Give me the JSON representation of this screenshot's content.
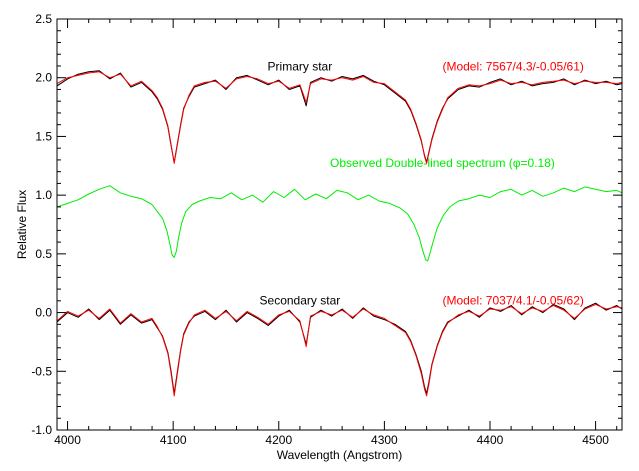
{
  "chart_data": {
    "type": "line",
    "title": "",
    "xlabel": "Wavelength (Angstrom)",
    "ylabel": "Relative Flux",
    "xlim": [
      3990,
      4525
    ],
    "ylim": [
      -1.0,
      2.5
    ],
    "xticks": [
      {
        "value": 4000,
        "label": "4000"
      },
      {
        "value": 4100,
        "label": "4100"
      },
      {
        "value": 4200,
        "label": "4200"
      },
      {
        "value": 4300,
        "label": "4300"
      },
      {
        "value": 4400,
        "label": "4400"
      },
      {
        "value": 4500,
        "label": "4500"
      }
    ],
    "yticks": [
      {
        "value": -1.0,
        "label": "-1.0"
      },
      {
        "value": -0.5,
        "label": "-0.5"
      },
      {
        "value": 0.0,
        "label": "0.0"
      },
      {
        "value": 0.5,
        "label": "0.5"
      },
      {
        "value": 1.0,
        "label": "1.0"
      },
      {
        "value": 1.5,
        "label": "1.5"
      },
      {
        "value": 2.0,
        "label": "2.0"
      },
      {
        "value": 2.5,
        "label": "2.5"
      }
    ],
    "x_minor_step": 20,
    "y_minor_step": 0.1,
    "grid": false,
    "colors": {
      "observed": "#000000",
      "model": "#ff0000",
      "double_lined": "#00ee00",
      "axis": "#000000"
    },
    "annotations": {
      "primary_label": {
        "text": "Primary star",
        "color": "#000000",
        "x": 4220,
        "y": 2.06
      },
      "primary_model": {
        "text": "(Model: 7567/4.3/-0.05/61)",
        "color": "#ff0000",
        "x": 4355,
        "y": 2.06
      },
      "double_label": {
        "text": "Observed Double-lined spectrum (φ=0.18)",
        "color": "#00ee00",
        "x": 4355,
        "y": 1.24
      },
      "secondary_label": {
        "text": "Secondary star",
        "color": "#000000",
        "x": 4220,
        "y": 0.07
      },
      "secondary_model": {
        "text": "(Model: 7037/4.1/-0.05/62)",
        "color": "#ff0000",
        "x": 4355,
        "y": 0.07
      }
    },
    "series": [
      {
        "key": "primary_observed",
        "group": "primary",
        "role": "observed",
        "color": "#000000",
        "x": [
          3990,
          4000,
          4010,
          4020,
          4030,
          4040,
          4050,
          4060,
          4070,
          4080,
          4085,
          4090,
          4095,
          4098,
          4101,
          4104,
          4107,
          4110,
          4115,
          4120,
          4130,
          4140,
          4150,
          4160,
          4170,
          4180,
          4190,
          4200,
          4210,
          4220,
          4226,
          4230,
          4240,
          4250,
          4260,
          4270,
          4280,
          4290,
          4300,
          4310,
          4320,
          4325,
          4330,
          4335,
          4338,
          4340,
          4342,
          4345,
          4350,
          4355,
          4360,
          4370,
          4380,
          4390,
          4400,
          4410,
          4420,
          4430,
          4440,
          4450,
          4460,
          4470,
          4480,
          4490,
          4500,
          4510,
          4520,
          4525
        ],
        "y": [
          1.93,
          1.99,
          2.03,
          2.05,
          2.06,
          1.99,
          2.04,
          1.92,
          1.96,
          1.88,
          1.82,
          1.73,
          1.58,
          1.42,
          1.28,
          1.44,
          1.6,
          1.74,
          1.84,
          1.92,
          1.95,
          1.98,
          1.9,
          2.0,
          2.02,
          1.98,
          1.94,
          1.98,
          1.9,
          1.93,
          1.76,
          1.96,
          2.0,
          1.97,
          2.01,
          1.99,
          2.02,
          1.97,
          1.94,
          1.87,
          1.8,
          1.72,
          1.6,
          1.46,
          1.34,
          1.28,
          1.36,
          1.48,
          1.63,
          1.74,
          1.82,
          1.9,
          1.93,
          1.92,
          1.96,
          1.99,
          1.94,
          1.97,
          1.93,
          1.95,
          1.96,
          1.99,
          1.94,
          1.98,
          1.95,
          1.97,
          1.94,
          1.95
        ]
      },
      {
        "key": "primary_model",
        "group": "primary",
        "role": "model",
        "color": "#ff0000",
        "x": [
          3990,
          4000,
          4010,
          4020,
          4030,
          4040,
          4050,
          4060,
          4070,
          4080,
          4085,
          4090,
          4095,
          4098,
          4101,
          4104,
          4107,
          4110,
          4115,
          4120,
          4130,
          4140,
          4150,
          4160,
          4170,
          4180,
          4190,
          4200,
          4210,
          4220,
          4226,
          4230,
          4240,
          4250,
          4260,
          4270,
          4280,
          4290,
          4300,
          4310,
          4320,
          4325,
          4330,
          4335,
          4338,
          4340,
          4342,
          4345,
          4350,
          4355,
          4360,
          4370,
          4380,
          4390,
          4400,
          4410,
          4420,
          4430,
          4440,
          4450,
          4460,
          4470,
          4480,
          4490,
          4500,
          4510,
          4520,
          4525
        ],
        "y": [
          1.95,
          2.0,
          2.02,
          2.04,
          2.05,
          2.0,
          2.03,
          1.93,
          1.97,
          1.89,
          1.83,
          1.74,
          1.59,
          1.43,
          1.27,
          1.43,
          1.59,
          1.73,
          1.85,
          1.93,
          1.96,
          1.97,
          1.91,
          1.99,
          2.01,
          1.99,
          1.95,
          1.97,
          1.91,
          1.94,
          1.79,
          1.95,
          1.99,
          1.98,
          2.0,
          1.98,
          2.01,
          1.96,
          1.95,
          1.88,
          1.81,
          1.73,
          1.61,
          1.47,
          1.33,
          1.27,
          1.35,
          1.47,
          1.62,
          1.73,
          1.83,
          1.91,
          1.94,
          1.93,
          1.95,
          1.98,
          1.95,
          1.96,
          1.94,
          1.96,
          1.97,
          1.98,
          1.95,
          1.97,
          1.96,
          1.96,
          1.95,
          1.96
        ]
      },
      {
        "key": "double_lined",
        "group": "double",
        "role": "observed",
        "color": "#00ee00",
        "x": [
          3990,
          4000,
          4010,
          4020,
          4030,
          4040,
          4050,
          4060,
          4070,
          4080,
          4085,
          4090,
          4094,
          4097,
          4099,
          4101,
          4103,
          4105,
          4108,
          4112,
          4118,
          4125,
          4135,
          4145,
          4155,
          4165,
          4175,
          4185,
          4195,
          4205,
          4215,
          4225,
          4235,
          4245,
          4255,
          4265,
          4275,
          4285,
          4295,
          4305,
          4315,
          4322,
          4328,
          4333,
          4336,
          4339,
          4341,
          4343,
          4346,
          4350,
          4356,
          4362,
          4370,
          4380,
          4390,
          4400,
          4410,
          4420,
          4430,
          4440,
          4450,
          4460,
          4470,
          4480,
          4490,
          4500,
          4510,
          4520,
          4525
        ],
        "y": [
          0.9,
          0.93,
          0.96,
          1.01,
          1.05,
          1.08,
          1.02,
          0.99,
          0.97,
          0.92,
          0.86,
          0.8,
          0.7,
          0.58,
          0.49,
          0.47,
          0.52,
          0.63,
          0.76,
          0.86,
          0.92,
          0.95,
          0.98,
          0.97,
          1.02,
          0.96,
          1.0,
          0.94,
          1.03,
          0.98,
          1.05,
          0.96,
          1.01,
          0.97,
          1.04,
          1.02,
          0.96,
          1.0,
          0.95,
          0.93,
          0.89,
          0.84,
          0.75,
          0.64,
          0.54,
          0.45,
          0.44,
          0.5,
          0.6,
          0.72,
          0.83,
          0.9,
          0.95,
          0.97,
          1.0,
          0.98,
          1.03,
          1.05,
          1.0,
          1.04,
          0.99,
          1.02,
          1.06,
          1.03,
          1.07,
          1.05,
          1.03,
          1.04,
          1.02
        ]
      },
      {
        "key": "secondary_observed",
        "group": "secondary",
        "role": "observed",
        "color": "#000000",
        "x": [
          3990,
          4000,
          4010,
          4020,
          4030,
          4040,
          4050,
          4060,
          4070,
          4080,
          4085,
          4090,
          4095,
          4098,
          4101,
          4104,
          4107,
          4110,
          4115,
          4120,
          4130,
          4140,
          4150,
          4160,
          4170,
          4180,
          4190,
          4200,
          4210,
          4220,
          4226,
          4230,
          4240,
          4250,
          4260,
          4270,
          4280,
          4290,
          4300,
          4310,
          4320,
          4325,
          4330,
          4335,
          4338,
          4340,
          4342,
          4345,
          4350,
          4355,
          4360,
          4370,
          4380,
          4390,
          4400,
          4410,
          4420,
          4430,
          4440,
          4450,
          4460,
          4470,
          4480,
          4490,
          4500,
          4510,
          4520,
          4525
        ],
        "y": [
          -0.08,
          0.0,
          -0.04,
          0.03,
          -0.06,
          0.02,
          -0.1,
          -0.02,
          -0.09,
          -0.06,
          -0.13,
          -0.2,
          -0.34,
          -0.5,
          -0.69,
          -0.5,
          -0.32,
          -0.18,
          -0.08,
          -0.03,
          0.01,
          -0.06,
          0.02,
          -0.08,
          0.0,
          -0.05,
          -0.11,
          -0.03,
          0.02,
          -0.08,
          -0.27,
          -0.04,
          0.02,
          -0.03,
          0.03,
          -0.05,
          0.04,
          -0.03,
          -0.06,
          -0.1,
          -0.16,
          -0.24,
          -0.36,
          -0.5,
          -0.63,
          -0.69,
          -0.6,
          -0.44,
          -0.28,
          -0.16,
          -0.08,
          -0.03,
          0.02,
          -0.04,
          0.04,
          0.01,
          0.06,
          -0.02,
          0.05,
          0.0,
          0.07,
          0.03,
          -0.06,
          0.04,
          0.08,
          0.02,
          0.06,
          0.03
        ]
      },
      {
        "key": "secondary_model",
        "group": "secondary",
        "role": "model",
        "color": "#ff0000",
        "x": [
          3990,
          4000,
          4010,
          4020,
          4030,
          4040,
          4050,
          4060,
          4070,
          4080,
          4085,
          4090,
          4095,
          4098,
          4101,
          4104,
          4107,
          4110,
          4115,
          4120,
          4130,
          4140,
          4150,
          4160,
          4170,
          4180,
          4190,
          4200,
          4210,
          4220,
          4226,
          4230,
          4240,
          4250,
          4260,
          4270,
          4280,
          4290,
          4300,
          4310,
          4320,
          4325,
          4330,
          4335,
          4338,
          4340,
          4342,
          4345,
          4350,
          4355,
          4360,
          4370,
          4380,
          4390,
          4400,
          4410,
          4420,
          4430,
          4440,
          4450,
          4460,
          4470,
          4480,
          4490,
          4500,
          4510,
          4520,
          4525
        ],
        "y": [
          -0.07,
          0.01,
          -0.03,
          0.02,
          -0.05,
          0.03,
          -0.09,
          -0.01,
          -0.08,
          -0.05,
          -0.12,
          -0.21,
          -0.35,
          -0.52,
          -0.71,
          -0.52,
          -0.33,
          -0.19,
          -0.09,
          -0.02,
          0.02,
          -0.05,
          0.01,
          -0.07,
          0.01,
          -0.04,
          -0.1,
          -0.02,
          0.01,
          -0.07,
          -0.29,
          -0.03,
          0.01,
          -0.02,
          0.02,
          -0.04,
          0.03,
          -0.02,
          -0.05,
          -0.11,
          -0.17,
          -0.25,
          -0.37,
          -0.52,
          -0.65,
          -0.71,
          -0.62,
          -0.45,
          -0.29,
          -0.17,
          -0.09,
          -0.02,
          0.01,
          -0.03,
          0.03,
          0.02,
          0.05,
          -0.01,
          0.04,
          0.01,
          0.06,
          0.02,
          -0.05,
          0.03,
          0.07,
          0.03,
          0.05,
          0.04
        ]
      }
    ]
  }
}
